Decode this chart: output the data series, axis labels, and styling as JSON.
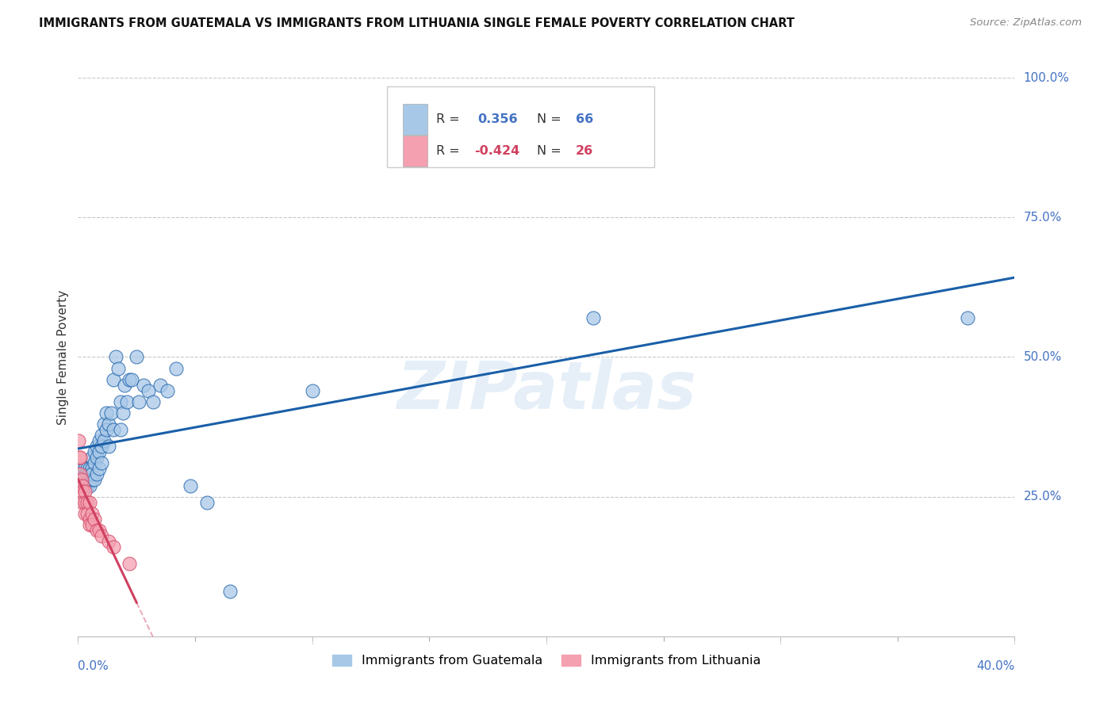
{
  "title": "IMMIGRANTS FROM GUATEMALA VS IMMIGRANTS FROM LITHUANIA SINGLE FEMALE POVERTY CORRELATION CHART",
  "source": "Source: ZipAtlas.com",
  "ylabel": "Single Female Poverty",
  "legend_label1": "Immigrants from Guatemala",
  "legend_label2": "Immigrants from Lithuania",
  "r1": 0.356,
  "n1": 66,
  "r2": -0.424,
  "n2": 26,
  "color_blue": "#a8c8e8",
  "color_pink": "#f4a0b0",
  "color_blue_line": "#1a5fa8",
  "color_pink_line": "#d04060",
  "color_axis_label": "#4472c4",
  "watermark": "ZIPatlas",
  "guatemala_x": [
    0.0005,
    0.001,
    0.001,
    0.0015,
    0.002,
    0.002,
    0.0025,
    0.003,
    0.003,
    0.003,
    0.0035,
    0.004,
    0.004,
    0.0045,
    0.005,
    0.005,
    0.005,
    0.005,
    0.006,
    0.006,
    0.006,
    0.006,
    0.007,
    0.007,
    0.007,
    0.008,
    0.008,
    0.008,
    0.009,
    0.009,
    0.009,
    0.01,
    0.01,
    0.01,
    0.011,
    0.011,
    0.012,
    0.012,
    0.013,
    0.013,
    0.014,
    0.015,
    0.015,
    0.016,
    0.017,
    0.018,
    0.018,
    0.019,
    0.02,
    0.021,
    0.022,
    0.023,
    0.025,
    0.026,
    0.028,
    0.03,
    0.032,
    0.035,
    0.038,
    0.042,
    0.048,
    0.055,
    0.065,
    0.1,
    0.22,
    0.38
  ],
  "guatemala_y": [
    0.3,
    0.28,
    0.29,
    0.3,
    0.28,
    0.3,
    0.27,
    0.29,
    0.27,
    0.3,
    0.29,
    0.27,
    0.3,
    0.28,
    0.3,
    0.28,
    0.29,
    0.27,
    0.3,
    0.28,
    0.29,
    0.32,
    0.31,
    0.33,
    0.28,
    0.34,
    0.32,
    0.29,
    0.35,
    0.33,
    0.3,
    0.36,
    0.34,
    0.31,
    0.38,
    0.35,
    0.4,
    0.37,
    0.38,
    0.34,
    0.4,
    0.46,
    0.37,
    0.5,
    0.48,
    0.42,
    0.37,
    0.4,
    0.45,
    0.42,
    0.46,
    0.46,
    0.5,
    0.42,
    0.45,
    0.44,
    0.42,
    0.45,
    0.44,
    0.48,
    0.27,
    0.24,
    0.08,
    0.44,
    0.57,
    0.57
  ],
  "lithuania_x": [
    0.0003,
    0.0005,
    0.001,
    0.001,
    0.001,
    0.0015,
    0.002,
    0.002,
    0.002,
    0.003,
    0.003,
    0.003,
    0.004,
    0.004,
    0.005,
    0.005,
    0.005,
    0.006,
    0.006,
    0.007,
    0.008,
    0.009,
    0.01,
    0.013,
    0.015,
    0.022
  ],
  "lithuania_y": [
    0.35,
    0.32,
    0.32,
    0.29,
    0.27,
    0.28,
    0.27,
    0.26,
    0.24,
    0.26,
    0.24,
    0.22,
    0.24,
    0.22,
    0.24,
    0.21,
    0.2,
    0.22,
    0.2,
    0.21,
    0.19,
    0.19,
    0.18,
    0.17,
    0.16,
    0.13
  ],
  "xmin": 0.0,
  "xmax": 0.4,
  "ymin": 0.0,
  "ymax": 1.0,
  "yticks": [
    0.25,
    0.5,
    0.75,
    1.0
  ],
  "ytick_labels": [
    "25.0%",
    "50.0%",
    "75.0%",
    "100.0%"
  ]
}
